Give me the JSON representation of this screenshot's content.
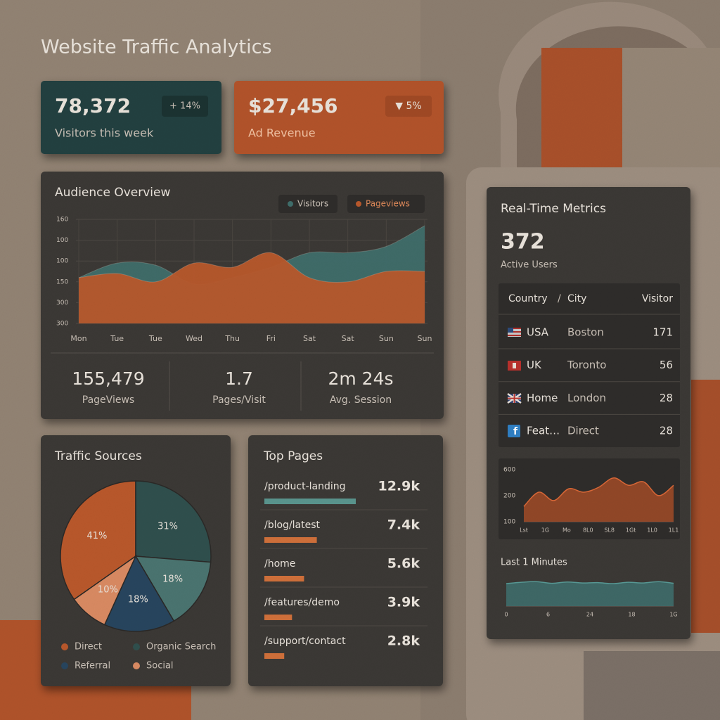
{
  "title": "Website Traffic Analytics",
  "kpis": [
    {
      "value": "78,372",
      "change": "+ 14%",
      "label": "Visitors this week"
    },
    {
      "value": "$27,456",
      "change": "▼ 5%",
      "label": "Ad Revenue"
    }
  ],
  "audience_stats": [
    {
      "value": "155,479",
      "label": "PageViews"
    },
    {
      "value": "1.7",
      "label": "Pages/Visit"
    },
    {
      "value": "2m 24s",
      "label": "Avg. Session"
    }
  ],
  "realtime": {
    "title": "Real-Time Metrics",
    "active_users": "372",
    "active_users_label": "Active Users",
    "table": {
      "header": [
        "Country",
        "/",
        "City",
        "Visitor"
      ],
      "rows": [
        [
          "USA",
          "Boston",
          "171"
        ],
        [
          "UK",
          "Toronto",
          "56"
        ],
        [
          "Home",
          "London",
          "28"
        ],
        [
          "Feat…",
          "Direct",
          "28"
        ]
      ]
    },
    "last_label": "Last 1 Minutes"
  },
  "chart_data": [
    {
      "type": "area",
      "title": "Audience Overview",
      "categories": [
        "Mon",
        "Tue",
        "Tue",
        "Wed",
        "Thu",
        "Fri",
        "Sat",
        "Sat",
        "Sun",
        "Sun"
      ],
      "y_labels": [
        "160",
        "100",
        "100",
        "150",
        "300",
        "300"
      ],
      "ylim": [
        0,
        5
      ],
      "series": [
        {
          "name": "Visitors",
          "color": "#3f6e6b",
          "values": [
            2.2,
            2.9,
            2.8,
            1.9,
            2.2,
            2.7,
            3.4,
            3.4,
            3.7,
            4.7
          ]
        },
        {
          "name": "Pageviews",
          "color": "#b9582b",
          "values": [
            2.2,
            2.4,
            2.0,
            2.9,
            2.7,
            3.4,
            2.2,
            2.0,
            2.5,
            2.5
          ]
        }
      ]
    },
    {
      "type": "pie",
      "title": "Traffic Sources",
      "categories": [
        "Direct",
        "Organic Search",
        null,
        "Referral",
        "Social"
      ],
      "values": [
        41,
        31,
        18,
        18,
        10
      ],
      "value_labels": [
        "41%",
        "31%",
        "18%",
        "18%",
        "10%"
      ],
      "colors": [
        "#b9582b",
        "#2f4f4d",
        "#4a7470",
        "#27455e",
        "#d98a62"
      ]
    },
    {
      "type": "hbar",
      "title": "Top Pages",
      "categories": [
        "/product-landing",
        "/blog/latest",
        "/home",
        "/features/demo",
        "/support/contact"
      ],
      "values": [
        12900,
        7400,
        5600,
        3900,
        2800
      ],
      "value_labels": [
        "12.9k",
        "7.4k",
        "5.6k",
        "3.9k",
        "2.8k"
      ],
      "colors": [
        "#5a958e",
        "#d0703a",
        "#d0703a",
        "#d0703a",
        "#d0703a"
      ]
    },
    {
      "type": "sparkline",
      "y_labels": [
        "600",
        "200",
        "100"
      ],
      "x_labels": [
        "Lst",
        "1G",
        "Mo",
        "8L0",
        "SL8",
        "1Gt",
        "1L0",
        "1L1"
      ],
      "ylim": [
        0,
        10
      ],
      "values": [
        3.1,
        6,
        4.3,
        6.7,
        6,
        7,
        8.9,
        7.4,
        8.1,
        5.3,
        7.4
      ],
      "color": "#9c4a27"
    },
    {
      "type": "sparkline",
      "x_labels": [
        "0",
        "6",
        "24",
        "18",
        "1G"
      ],
      "ylim": [
        0,
        10
      ],
      "values": [
        6.8,
        7.2,
        7.4,
        6.9,
        7.3,
        7,
        7.1,
        6.8,
        7.2,
        7,
        7.4,
        6.9
      ],
      "color": "#3f6e6b"
    }
  ]
}
